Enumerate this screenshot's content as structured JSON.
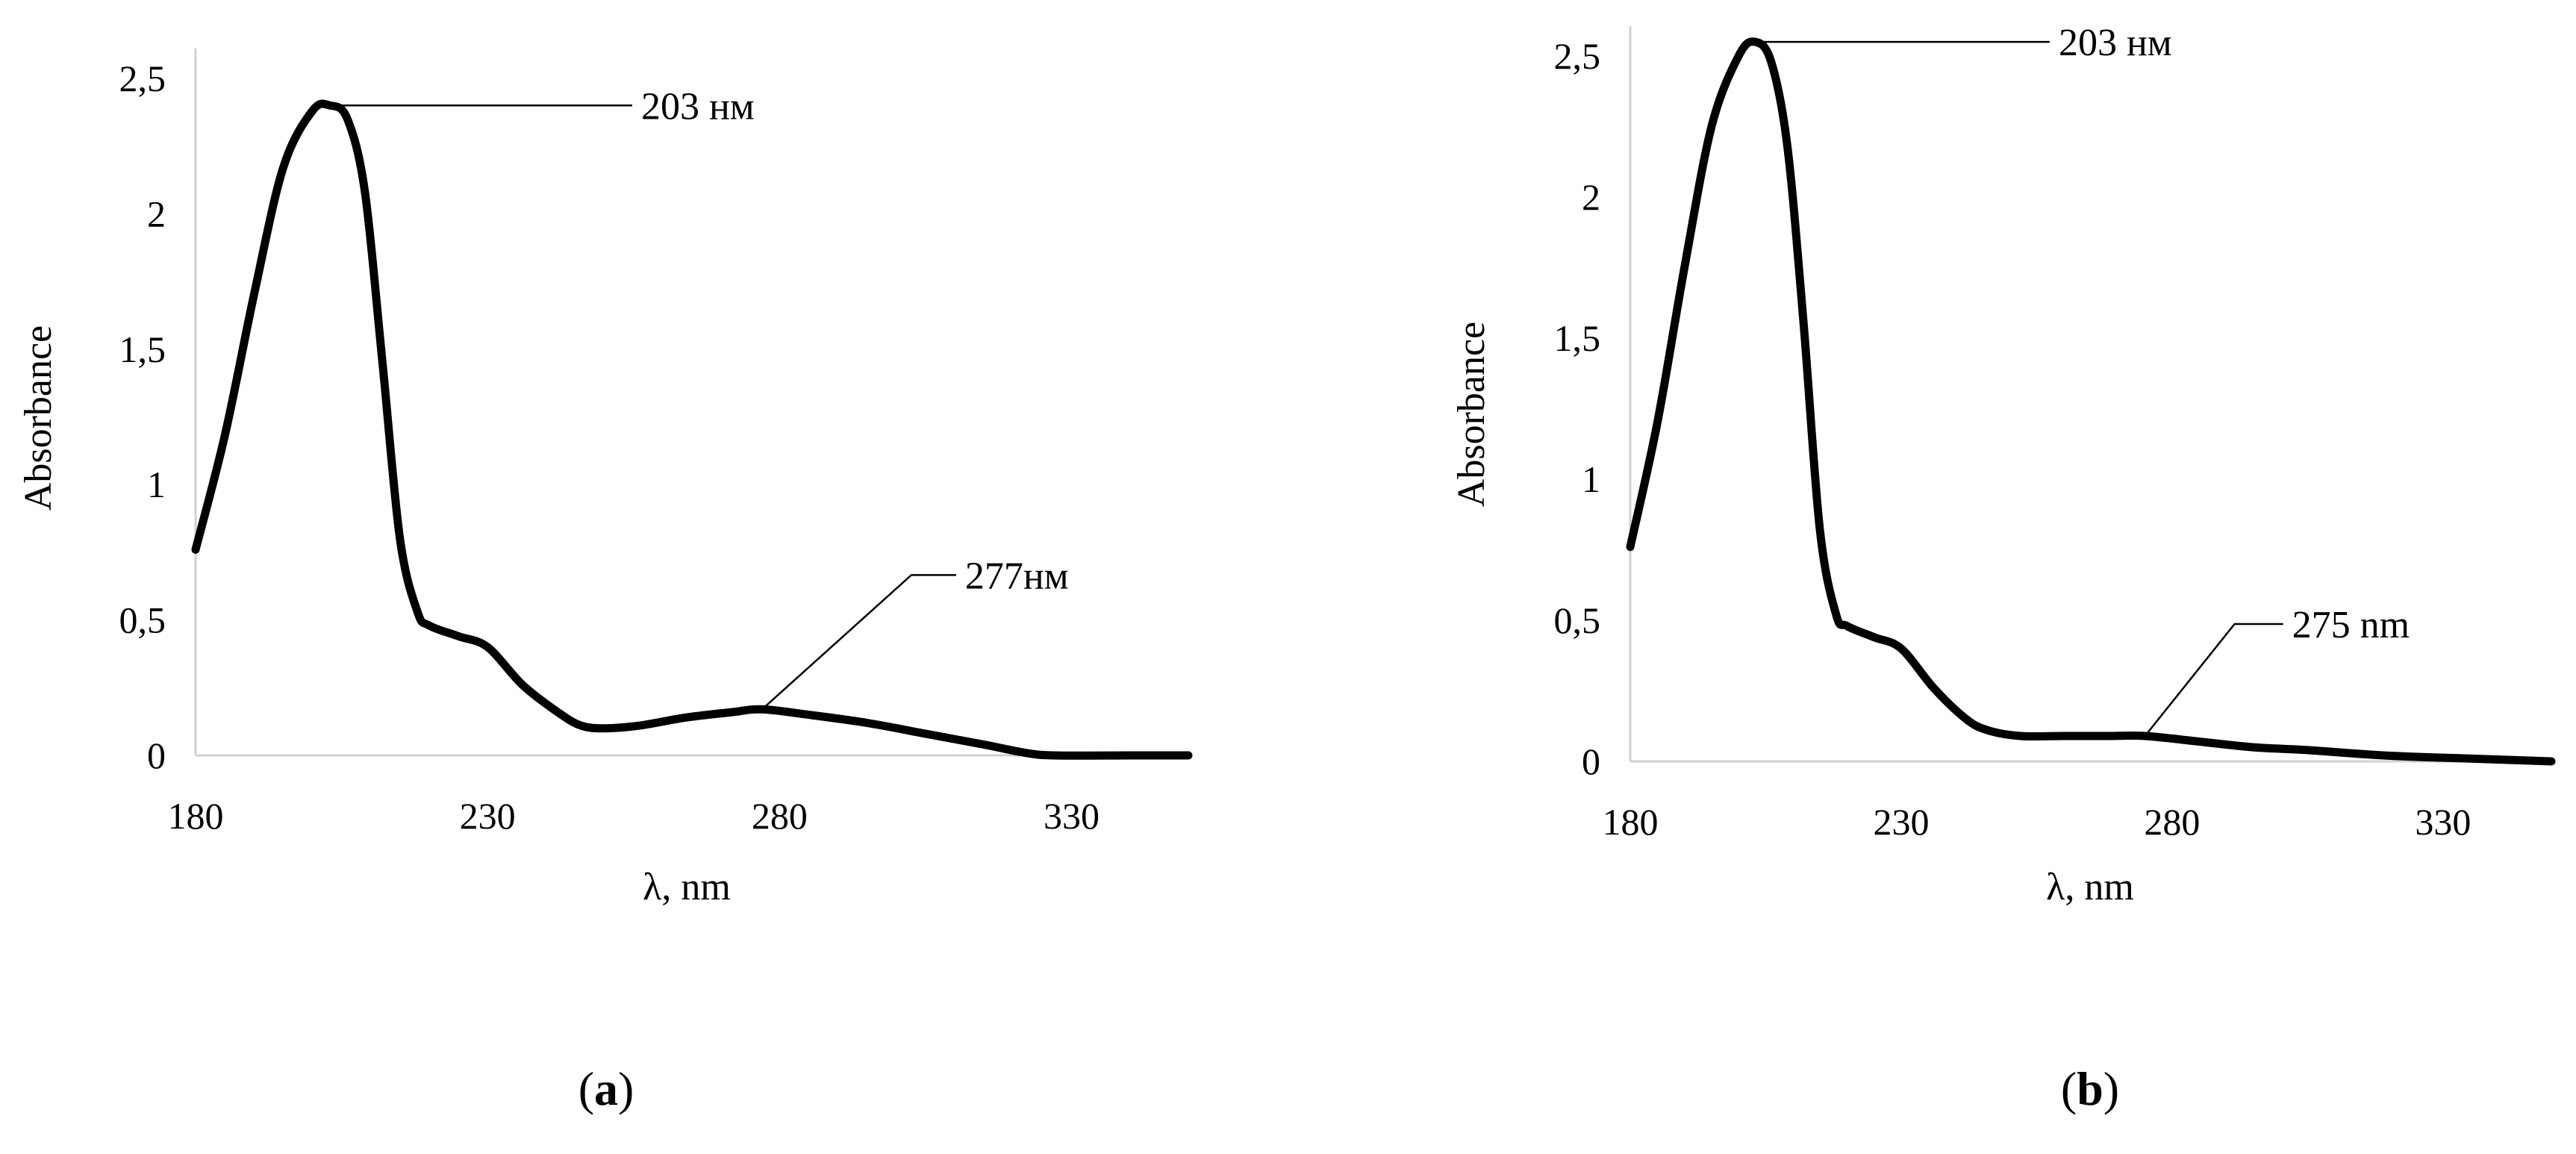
{
  "chart_data": [
    {
      "type": "line",
      "panel_label": {
        "open": "(",
        "letter": "a",
        "close": ")"
      },
      "title": "",
      "xlabel": "λ, nm",
      "ylabel": "Absorbance",
      "xlim": [
        180,
        350
      ],
      "ylim": [
        0,
        2.5
      ],
      "x_ticks": [
        180,
        230,
        280,
        330
      ],
      "x_tick_labels": [
        "180",
        "230",
        "280",
        "330"
      ],
      "y_ticks": [
        0,
        0.5,
        1,
        1.5,
        2,
        2.5
      ],
      "y_tick_labels": [
        "0",
        "0,5",
        "1",
        "1,5",
        "2",
        "2,5"
      ],
      "grid": false,
      "legend": "none",
      "series": [
        {
          "color": "#000000",
          "points": [
            [
              180,
              0.76
            ],
            [
              185,
              1.18
            ],
            [
              190,
              1.7
            ],
            [
              195,
              2.17
            ],
            [
              200,
              2.38
            ],
            [
              203,
              2.4
            ],
            [
              206,
              2.35
            ],
            [
              209,
              2.08
            ],
            [
              212,
              1.45
            ],
            [
              215,
              0.8
            ],
            [
              218,
              0.53
            ],
            [
              220,
              0.48
            ],
            [
              225,
              0.44
            ],
            [
              230,
              0.4
            ],
            [
              236,
              0.26
            ],
            [
              242,
              0.16
            ],
            [
              246,
              0.11
            ],
            [
              250,
              0.1
            ],
            [
              256,
              0.11
            ],
            [
              264,
              0.14
            ],
            [
              272,
              0.16
            ],
            [
              277,
              0.17
            ],
            [
              285,
              0.15
            ],
            [
              295,
              0.12
            ],
            [
              305,
              0.08
            ],
            [
              315,
              0.04
            ],
            [
              322,
              0.01
            ],
            [
              327,
              0.0
            ],
            [
              340,
              0.0
            ],
            [
              350,
              0.0
            ]
          ]
        }
      ],
      "annotations": [
        {
          "text": "203 нм",
          "x": 203,
          "y": 2.4
        },
        {
          "text": "277нм",
          "x": 277,
          "y": 0.17
        }
      ]
    },
    {
      "type": "line",
      "panel_label": {
        "open": "(",
        "letter": "b",
        "close": ")"
      },
      "title": "",
      "xlabel": "λ, nm",
      "ylabel": "Absorbance",
      "xlim": [
        180,
        350
      ],
      "ylim": [
        0,
        2.5
      ],
      "x_ticks": [
        180,
        230,
        280,
        330
      ],
      "x_tick_labels": [
        "180",
        "230",
        "280",
        "330"
      ],
      "y_ticks": [
        0,
        0.5,
        1,
        1.5,
        2,
        2.5
      ],
      "y_tick_labels": [
        "0",
        "0,5",
        "1",
        "1,5",
        "2",
        "2,5"
      ],
      "grid": false,
      "legend": "none",
      "series": [
        {
          "color": "#000000",
          "points": [
            [
              180,
              0.76
            ],
            [
              185,
              1.2
            ],
            [
              190,
              1.75
            ],
            [
              195,
              2.25
            ],
            [
              200,
              2.5
            ],
            [
              203,
              2.55
            ],
            [
              206,
              2.48
            ],
            [
              209,
              2.18
            ],
            [
              212,
              1.55
            ],
            [
              215,
              0.82
            ],
            [
              218,
              0.52
            ],
            [
              220,
              0.48
            ],
            [
              225,
              0.44
            ],
            [
              230,
              0.4
            ],
            [
              236,
              0.26
            ],
            [
              242,
              0.15
            ],
            [
              246,
              0.11
            ],
            [
              252,
              0.09
            ],
            [
              260,
              0.09
            ],
            [
              268,
              0.09
            ],
            [
              275,
              0.09
            ],
            [
              285,
              0.07
            ],
            [
              295,
              0.05
            ],
            [
              305,
              0.04
            ],
            [
              320,
              0.02
            ],
            [
              335,
              0.01
            ],
            [
              350,
              0.0
            ]
          ]
        }
      ],
      "annotations": [
        {
          "text": "203 нм",
          "x": 203,
          "y": 2.55
        },
        {
          "text": "275 nm",
          "x": 275,
          "y": 0.09
        }
      ]
    }
  ]
}
